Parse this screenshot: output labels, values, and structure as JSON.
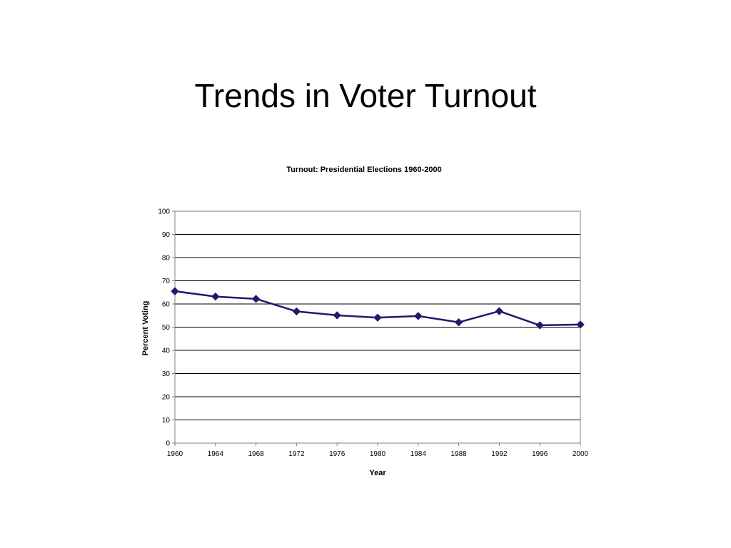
{
  "slide": {
    "title": "Trends in Voter Turnout"
  },
  "chart_data": {
    "type": "line",
    "title": "Turnout: Presidential Elections 1960-2000",
    "xlabel": "Year",
    "ylabel": "Percent Voting",
    "x": [
      "1960",
      "1964",
      "1968",
      "1972",
      "1976",
      "1980",
      "1984",
      "1988",
      "1992",
      "1996",
      "2000"
    ],
    "series": [
      {
        "name": "",
        "color": "#1f1a6e",
        "marker": "diamond",
        "values": [
          65.5,
          63.2,
          62.2,
          56.8,
          55.1,
          54.1,
          54.8,
          52.1,
          56.9,
          50.8,
          51.1
        ]
      }
    ],
    "ylim": [
      0,
      100
    ],
    "yticks": [
      "0",
      "10",
      "20",
      "30",
      "40",
      "50",
      "60",
      "70",
      "80",
      "90",
      "100"
    ],
    "grid": true,
    "legend": "none"
  }
}
